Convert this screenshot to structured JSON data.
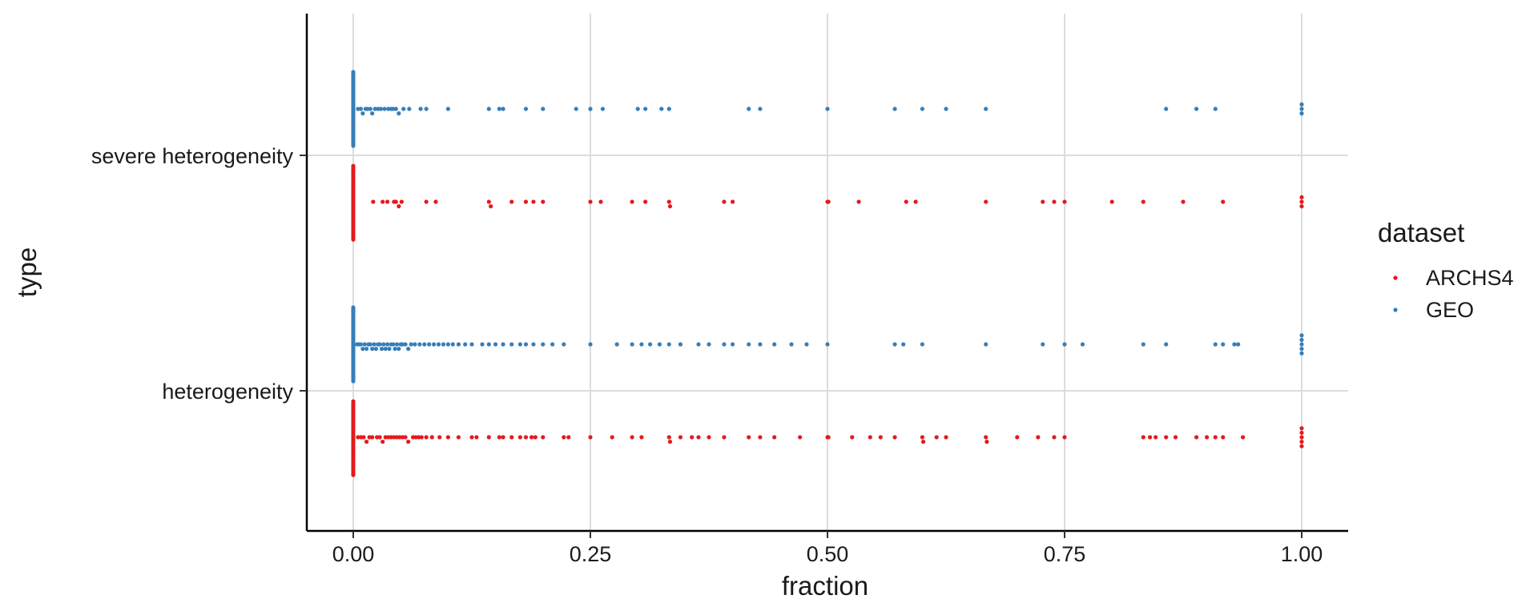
{
  "chart_data": {
    "type": "scatter",
    "subtype": "beeswarm",
    "xlabel": "fraction",
    "ylabel": "type",
    "xlim": [
      -0.03,
      1.05
    ],
    "x_ticks": [
      0,
      0.25,
      0.5,
      0.75,
      1.0
    ],
    "x_tick_labels": [
      "0.00",
      "0.25",
      "0.50",
      "0.75",
      "1.00"
    ],
    "categories": [
      "severe heterogeneity",
      "heterogeneity"
    ],
    "grid": true,
    "legend": {
      "title": "dataset",
      "position": "right"
    },
    "series": [
      {
        "name": "ARCHS4",
        "color": "#e41a1c",
        "points": {
          "severe heterogeneity": [
            0,
            0,
            0,
            0,
            0,
            0,
            0,
            0,
            0,
            0,
            0,
            0,
            0,
            0,
            0,
            0,
            0,
            0,
            0,
            0,
            0,
            0,
            0,
            0,
            0,
            0,
            0,
            0,
            0,
            0,
            0,
            0,
            0,
            0,
            0,
            0,
            0,
            0,
            0,
            0,
            0.021,
            0.031,
            0.036,
            0.043,
            0.045,
            0.048,
            0.051,
            0.077,
            0.087,
            0.143,
            0.145,
            0.167,
            0.182,
            0.19,
            0.2,
            0.25,
            0.261,
            0.294,
            0.308,
            0.333,
            0.334,
            0.391,
            0.4,
            0.5,
            0.501,
            0.533,
            0.583,
            0.593,
            0.667,
            0.727,
            0.739,
            0.75,
            0.8,
            0.833,
            0.875,
            0.917,
            1.0,
            1.0,
            1.0
          ],
          "heterogeneity": [
            0,
            0,
            0,
            0,
            0,
            0,
            0,
            0,
            0,
            0,
            0,
            0,
            0,
            0,
            0,
            0,
            0,
            0,
            0,
            0,
            0,
            0,
            0,
            0,
            0,
            0,
            0,
            0,
            0,
            0,
            0,
            0,
            0,
            0,
            0,
            0,
            0,
            0,
            0,
            0,
            0.005,
            0.008,
            0.011,
            0.014,
            0.017,
            0.02,
            0.025,
            0.028,
            0.031,
            0.034,
            0.037,
            0.04,
            0.043,
            0.046,
            0.049,
            0.052,
            0.055,
            0.058,
            0.063,
            0.066,
            0.069,
            0.072,
            0.077,
            0.083,
            0.091,
            0.1,
            0.111,
            0.125,
            0.13,
            0.143,
            0.154,
            0.158,
            0.167,
            0.176,
            0.182,
            0.188,
            0.192,
            0.2,
            0.222,
            0.227,
            0.25,
            0.273,
            0.294,
            0.304,
            0.333,
            0.334,
            0.345,
            0.357,
            0.364,
            0.375,
            0.391,
            0.417,
            0.429,
            0.444,
            0.471,
            0.5,
            0.501,
            0.526,
            0.545,
            0.556,
            0.571,
            0.6,
            0.601,
            0.615,
            0.625,
            0.667,
            0.668,
            0.7,
            0.722,
            0.739,
            0.75,
            0.833,
            0.84,
            0.846,
            0.857,
            0.867,
            0.889,
            0.9,
            0.909,
            0.917,
            0.938,
            1.0,
            1.0,
            1.0,
            1.0,
            1.0
          ]
        }
      },
      {
        "name": "GEO",
        "color": "#377eb8",
        "points": {
          "severe heterogeneity": [
            0,
            0,
            0,
            0,
            0,
            0,
            0,
            0,
            0,
            0,
            0,
            0,
            0,
            0,
            0,
            0,
            0,
            0,
            0,
            0,
            0,
            0,
            0,
            0,
            0,
            0,
            0,
            0,
            0,
            0,
            0,
            0,
            0,
            0,
            0,
            0,
            0,
            0,
            0,
            0,
            0,
            0,
            0,
            0,
            0,
            0.005,
            0.008,
            0.01,
            0.013,
            0.015,
            0.018,
            0.02,
            0.023,
            0.026,
            0.029,
            0.033,
            0.037,
            0.04,
            0.042,
            0.045,
            0.048,
            0.053,
            0.059,
            0.071,
            0.077,
            0.1,
            0.143,
            0.154,
            0.158,
            0.182,
            0.2,
            0.235,
            0.25,
            0.263,
            0.3,
            0.308,
            0.325,
            0.333,
            0.417,
            0.429,
            0.5,
            0.571,
            0.6,
            0.625,
            0.667,
            0.857,
            0.889,
            0.909,
            1.0,
            1.0,
            1.0
          ],
          "heterogeneity": [
            0,
            0,
            0,
            0,
            0,
            0,
            0,
            0,
            0,
            0,
            0,
            0,
            0,
            0,
            0,
            0,
            0,
            0,
            0,
            0,
            0,
            0,
            0,
            0,
            0,
            0,
            0,
            0,
            0,
            0,
            0,
            0,
            0,
            0,
            0,
            0,
            0,
            0,
            0,
            0,
            0,
            0,
            0,
            0,
            0,
            0.004,
            0.006,
            0.008,
            0.01,
            0.012,
            0.014,
            0.016,
            0.018,
            0.02,
            0.022,
            0.024,
            0.026,
            0.028,
            0.03,
            0.032,
            0.034,
            0.036,
            0.038,
            0.04,
            0.042,
            0.044,
            0.046,
            0.048,
            0.05,
            0.052,
            0.055,
            0.058,
            0.061,
            0.065,
            0.07,
            0.075,
            0.08,
            0.085,
            0.09,
            0.095,
            0.1,
            0.105,
            0.111,
            0.118,
            0.125,
            0.136,
            0.143,
            0.15,
            0.158,
            0.167,
            0.176,
            0.182,
            0.19,
            0.2,
            0.21,
            0.222,
            0.25,
            0.278,
            0.294,
            0.304,
            0.313,
            0.323,
            0.333,
            0.345,
            0.364,
            0.375,
            0.391,
            0.4,
            0.417,
            0.429,
            0.444,
            0.462,
            0.478,
            0.5,
            0.571,
            0.58,
            0.6,
            0.667,
            0.727,
            0.75,
            0.769,
            0.833,
            0.857,
            0.909,
            0.917,
            0.929,
            0.933,
            1.0,
            1.0,
            1.0,
            1.0,
            1.0
          ]
        }
      }
    ]
  }
}
